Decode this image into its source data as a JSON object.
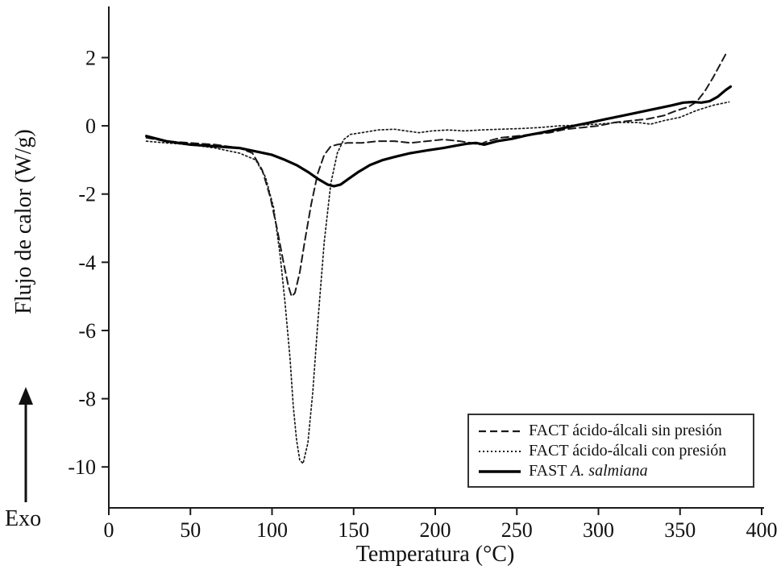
{
  "figure": {
    "exo_label": "Exo",
    "background": "#ffffff",
    "line_color": "#1a1a1a",
    "axis_color": "#1a1a1a"
  },
  "chart_data": {
    "type": "line",
    "title": "",
    "xlabel": "Temperatura (°C)",
    "ylabel": "Flujo de calor (W/g)",
    "xlim": [
      0,
      400
    ],
    "ylim": [
      -11.2,
      3.5
    ],
    "x_ticks": [
      0,
      50,
      100,
      150,
      200,
      250,
      300,
      350,
      400
    ],
    "y_ticks": [
      2,
      0,
      -2,
      -4,
      -6,
      -8,
      -10
    ],
    "grid": false,
    "legend_position": "lower right",
    "orientation_annotation": "Exo up",
    "series": [
      {
        "name": "FACT ácido-álcali sin presión",
        "label_prefix": "FACT ácido-álcali sin presión",
        "label_italic": "",
        "style": "dashed",
        "peak_min": {
          "x": 112,
          "y": -5.0
        },
        "x": [
          23,
          35,
          50,
          65,
          80,
          88,
          94,
          99,
          103,
          107,
          110,
          112,
          114,
          117,
          120,
          124,
          128,
          132,
          136,
          140,
          146,
          155,
          165,
          175,
          185,
          195,
          205,
          215,
          222,
          227,
          232,
          240,
          250,
          260,
          270,
          280,
          290,
          300,
          310,
          320,
          330,
          340,
          348,
          355,
          360,
          365,
          370,
          374,
          378
        ],
        "y": [
          -0.35,
          -0.45,
          -0.5,
          -0.55,
          -0.65,
          -0.8,
          -1.3,
          -2.1,
          -3.0,
          -4.0,
          -4.7,
          -5.0,
          -4.9,
          -4.3,
          -3.4,
          -2.3,
          -1.4,
          -0.85,
          -0.6,
          -0.55,
          -0.5,
          -0.5,
          -0.45,
          -0.45,
          -0.5,
          -0.45,
          -0.4,
          -0.45,
          -0.5,
          -0.55,
          -0.45,
          -0.35,
          -0.3,
          -0.25,
          -0.2,
          -0.1,
          -0.05,
          0.0,
          0.1,
          0.15,
          0.2,
          0.3,
          0.45,
          0.55,
          0.7,
          1.0,
          1.4,
          1.75,
          2.1
        ]
      },
      {
        "name": "FACT ácido-álcali con presión",
        "label_prefix": "FACT ácido-álcali con presión",
        "label_italic": "",
        "style": "dotted",
        "peak_min": {
          "x": 117,
          "y": -9.9
        },
        "x": [
          23,
          35,
          50,
          65,
          80,
          90,
          96,
          101,
          105,
          108,
          111,
          113,
          115,
          117,
          119,
          122,
          125,
          128,
          132,
          136,
          140,
          144,
          148,
          155,
          165,
          175,
          182,
          190,
          198,
          208,
          218,
          228,
          240,
          252,
          264,
          276,
          288,
          300,
          312,
          324,
          332,
          340,
          350,
          360,
          370,
          380
        ],
        "y": [
          -0.45,
          -0.5,
          -0.55,
          -0.65,
          -0.8,
          -1.0,
          -1.5,
          -2.4,
          -3.8,
          -5.2,
          -6.8,
          -8.2,
          -9.2,
          -9.8,
          -9.9,
          -9.3,
          -7.8,
          -5.8,
          -3.4,
          -1.7,
          -0.8,
          -0.4,
          -0.25,
          -0.2,
          -0.12,
          -0.1,
          -0.15,
          -0.2,
          -0.15,
          -0.12,
          -0.15,
          -0.12,
          -0.1,
          -0.08,
          -0.05,
          0.0,
          0.02,
          0.05,
          0.1,
          0.1,
          0.05,
          0.15,
          0.25,
          0.45,
          0.6,
          0.7
        ]
      },
      {
        "name": "FAST A. salmiana",
        "label_prefix": "FAST ",
        "label_italic": "A. salmiana",
        "style": "solid",
        "peak_min": {
          "x": 138,
          "y": -1.77
        },
        "x": [
          23,
          35,
          50,
          65,
          80,
          90,
          100,
          108,
          115,
          122,
          128,
          134,
          138,
          142,
          147,
          153,
          160,
          168,
          176,
          185,
          195,
          205,
          213,
          220,
          225,
          230,
          238,
          247,
          256,
          265,
          275,
          285,
          295,
          305,
          315,
          325,
          335,
          345,
          352,
          358,
          363,
          368,
          373,
          378,
          381
        ],
        "y": [
          -0.3,
          -0.45,
          -0.55,
          -0.6,
          -0.65,
          -0.75,
          -0.85,
          -1.0,
          -1.15,
          -1.35,
          -1.55,
          -1.72,
          -1.77,
          -1.72,
          -1.55,
          -1.35,
          -1.15,
          -1.0,
          -0.9,
          -0.8,
          -0.72,
          -0.65,
          -0.58,
          -0.52,
          -0.5,
          -0.55,
          -0.45,
          -0.38,
          -0.28,
          -0.2,
          -0.1,
          0.0,
          0.1,
          0.2,
          0.3,
          0.4,
          0.5,
          0.6,
          0.68,
          0.7,
          0.68,
          0.72,
          0.85,
          1.05,
          1.15
        ]
      }
    ]
  }
}
